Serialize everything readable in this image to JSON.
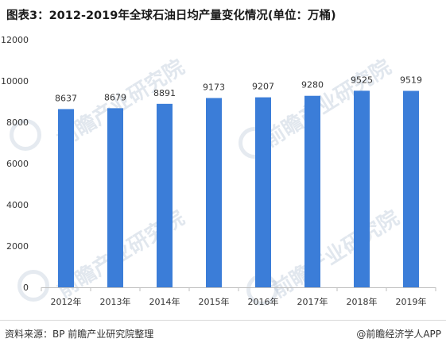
{
  "title": "图表3：2012-2019年全球石油日均产量变化情况(单位：万桶)",
  "watermark_text": "前瞻产业研究院",
  "footer": {
    "source": "资料来源：BP  前瞻产业研究院整理",
    "brand": "@前瞻经济学人APP"
  },
  "colors": {
    "bar": "#3b7dd8",
    "axis": "#bfbfbf",
    "text": "#333333"
  },
  "chart_data": {
    "type": "bar",
    "categories": [
      "2012年",
      "2013年",
      "2014年",
      "2015年",
      "2016年",
      "2017年",
      "2018年",
      "2019年"
    ],
    "values": [
      8637,
      8679,
      8891,
      9173,
      9207,
      9280,
      9525,
      9519
    ],
    "yticks": [
      0,
      2000,
      4000,
      6000,
      8000,
      10000,
      12000
    ],
    "ylim": [
      0,
      12000
    ],
    "grid": false,
    "data_labels": true
  }
}
